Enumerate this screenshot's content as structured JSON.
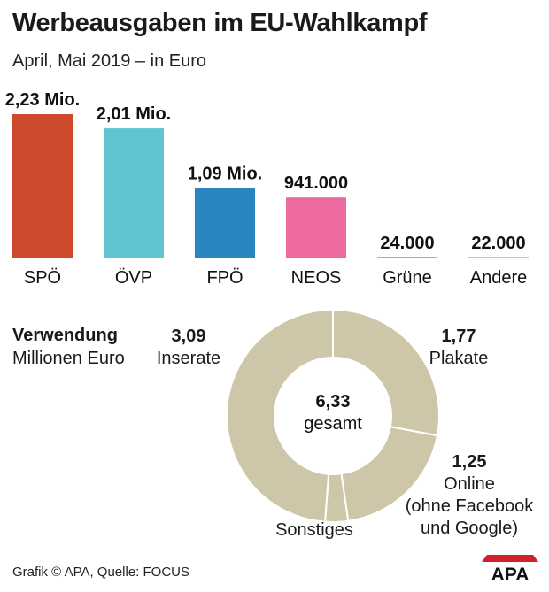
{
  "header": {
    "title": "Werbeausgaben im EU-Wahlkampf",
    "subtitle": "April, Mai 2019 – in Euro"
  },
  "chart_data": [
    {
      "type": "bar",
      "title": "Werbeausgaben im EU-Wahlkampf",
      "subtitle": "April, Mai 2019 – in Euro",
      "categories": [
        "SPÖ",
        "ÖVP",
        "FPÖ",
        "NEOS",
        "Grüne",
        "Andere"
      ],
      "values": [
        2230000,
        2010000,
        1090000,
        941000,
        24000,
        22000
      ],
      "labels": [
        "2,23 Mio.",
        "2,01 Mio.",
        "1,09 Mio.",
        "941.000",
        "24.000",
        "22.000"
      ],
      "colors": [
        "#cf4a2c",
        "#5fc5d0",
        "#2a85c0",
        "#ec6aa0",
        "#9fbf7a",
        "#c9c9ad"
      ],
      "ylim": [
        0,
        2230000
      ],
      "xlabel": "",
      "ylabel": ""
    },
    {
      "type": "pie",
      "title": "Verwendung",
      "unit": "Millionen Euro",
      "center_value": "6,33",
      "center_label": "gesamt",
      "color": "#cdc6a9",
      "slices": [
        {
          "label": "Plakate",
          "value": 1.77,
          "value_label": "1,77"
        },
        {
          "label": "Online (ohne Facebook und Google)",
          "value": 1.25,
          "value_label": "1,25",
          "label_lines": [
            "Online",
            "(ohne Facebook",
            "und Google)"
          ]
        },
        {
          "label": "Sonstiges",
          "value": 0.22,
          "value_label": ""
        },
        {
          "label": "Inserate",
          "value": 3.09,
          "value_label": "3,09"
        }
      ]
    }
  ],
  "usage": {
    "title": "Verwendung",
    "unit": "Millionen Euro",
    "center_value": "6,33",
    "center_label": "gesamt"
  },
  "footer": {
    "credit": "Grafik © APA, Quelle: FOCUS",
    "logo_text": "APA"
  }
}
